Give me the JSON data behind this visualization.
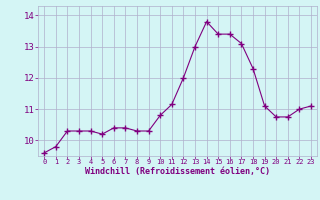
{
  "x": [
    0,
    1,
    2,
    3,
    4,
    5,
    6,
    7,
    8,
    9,
    10,
    11,
    12,
    13,
    14,
    15,
    16,
    17,
    18,
    19,
    20,
    21,
    22,
    23
  ],
  "y": [
    9.6,
    9.8,
    10.3,
    10.3,
    10.3,
    10.2,
    10.4,
    10.4,
    10.3,
    10.3,
    10.8,
    11.15,
    12.0,
    13.0,
    13.8,
    13.4,
    13.4,
    13.1,
    12.3,
    11.1,
    10.75,
    10.75,
    11.0,
    11.1
  ],
  "line_color": "#800080",
  "marker": "+",
  "bg_color": "#d4f5f5",
  "grid_color": "#b0b0cc",
  "xlabel": "Windchill (Refroidissement éolien,°C)",
  "xlabel_color": "#800080",
  "tick_color": "#800080",
  "ylim": [
    9.5,
    14.3
  ],
  "yticks": [
    10,
    11,
    12,
    13,
    14
  ],
  "xticks": [
    0,
    1,
    2,
    3,
    4,
    5,
    6,
    7,
    8,
    9,
    10,
    11,
    12,
    13,
    14,
    15,
    16,
    17,
    18,
    19,
    20,
    21,
    22,
    23
  ],
  "figsize": [
    3.2,
    2.0
  ],
  "dpi": 100
}
